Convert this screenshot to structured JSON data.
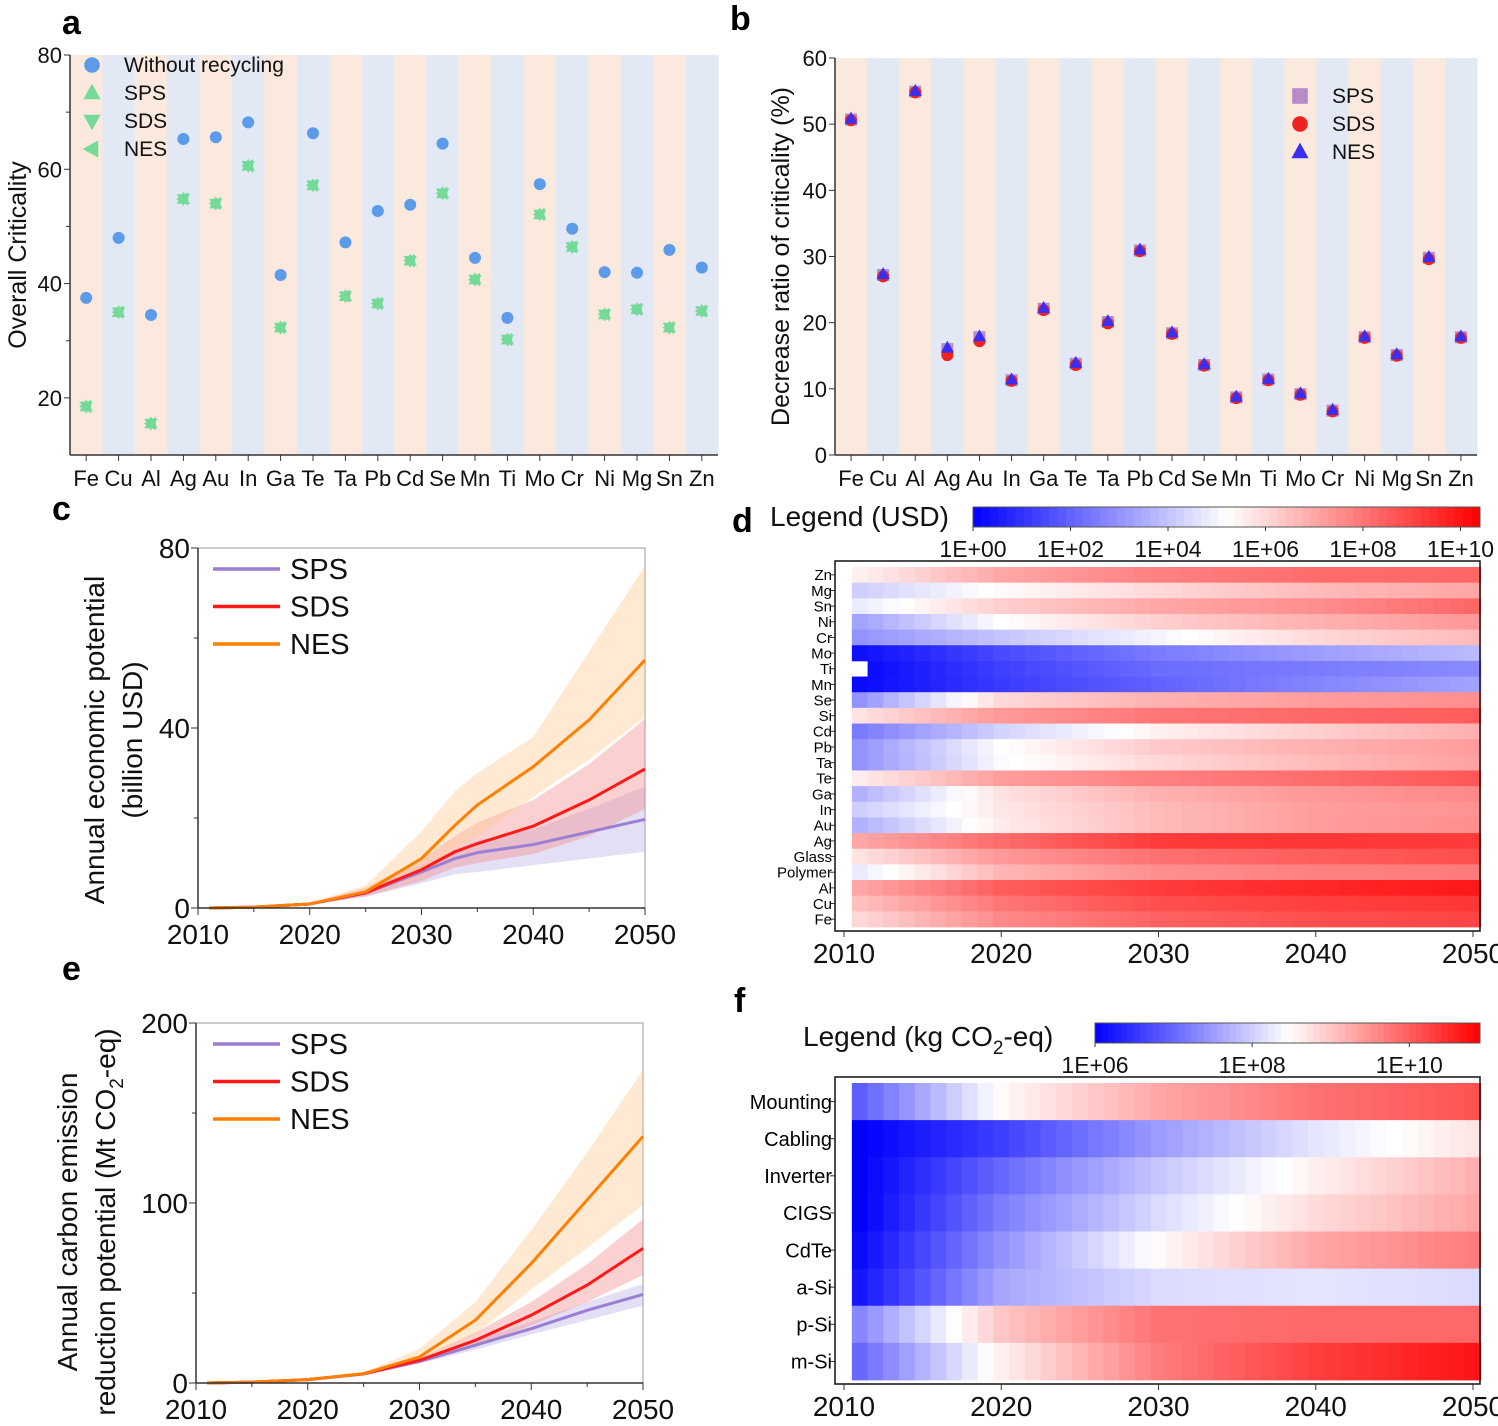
{
  "chart_data": [
    {
      "panel": "a",
      "type": "scatter",
      "ylabel": "Overall Criticality",
      "ylim": [
        10,
        80
      ],
      "yticks": [
        20,
        40,
        60,
        80
      ],
      "categories": [
        "Fe",
        "Cu",
        "Al",
        "Ag",
        "Au",
        "In",
        "Ga",
        "Te",
        "Ta",
        "Pb",
        "Cd",
        "Se",
        "Mn",
        "Ti",
        "Mo",
        "Cr",
        "Ni",
        "Mg",
        "Sn",
        "Zn"
      ],
      "background_colors": [
        "#fce9dd",
        "#e3e8f5"
      ],
      "series": [
        {
          "name": "Without recycling",
          "marker": "circle",
          "color": "#5b9bea",
          "values": [
            37.5,
            48.0,
            34.5,
            65.3,
            65.6,
            68.2,
            41.5,
            66.3,
            47.2,
            52.7,
            53.8,
            64.5,
            44.5,
            34.0,
            57.4,
            49.6,
            42.0,
            41.9,
            45.9,
            42.8
          ]
        },
        {
          "name": "SPS",
          "marker": "triangle-up",
          "color": "#74da98",
          "values": [
            18.5,
            35.0,
            15.5,
            54.8,
            54.0,
            60.6,
            32.3,
            57.2,
            37.8,
            36.5,
            44.0,
            55.8,
            40.7,
            30.2,
            52.1,
            46.4,
            34.6,
            35.5,
            32.3,
            35.2
          ]
        },
        {
          "name": "SDS",
          "marker": "triangle-down",
          "color": "#74da98",
          "values": [
            18.5,
            35.0,
            15.5,
            54.8,
            54.0,
            60.6,
            32.3,
            57.2,
            37.8,
            36.5,
            44.0,
            55.8,
            40.7,
            30.2,
            52.1,
            46.4,
            34.6,
            35.5,
            32.3,
            35.2
          ]
        },
        {
          "name": "NES",
          "marker": "triangle-left",
          "color": "#74da98",
          "values": [
            18.5,
            35.0,
            15.5,
            54.8,
            54.0,
            60.6,
            32.3,
            57.2,
            37.8,
            36.5,
            44.0,
            55.8,
            40.7,
            30.2,
            52.1,
            46.4,
            34.6,
            35.5,
            32.3,
            35.2
          ]
        }
      ],
      "legend_position": "top-left"
    },
    {
      "panel": "b",
      "type": "scatter",
      "ylabel": "Decrease ratio of criticality (%)",
      "ylim": [
        0,
        60
      ],
      "yticks": [
        0,
        10,
        20,
        30,
        40,
        50,
        60
      ],
      "categories": [
        "Fe",
        "Cu",
        "Al",
        "Ag",
        "Au",
        "In",
        "Ga",
        "Te",
        "Ta",
        "Pb",
        "Cd",
        "Se",
        "Mn",
        "Ti",
        "Mo",
        "Cr",
        "Ni",
        "Mg",
        "Sn",
        "Zn"
      ],
      "background_colors": [
        "#fce9dd",
        "#e3e8f5"
      ],
      "series": [
        {
          "name": "SPS",
          "marker": "square",
          "color": "#b58cc6",
          "values": [
            50.7,
            27.2,
            54.9,
            16.0,
            17.8,
            11.3,
            22.1,
            13.8,
            20.1,
            30.9,
            18.4,
            13.6,
            8.7,
            11.4,
            9.2,
            6.7,
            17.8,
            15.1,
            29.8,
            17.8
          ]
        },
        {
          "name": "SDS",
          "marker": "circle",
          "color": "#ee2222",
          "values": [
            50.6,
            27.0,
            54.8,
            15.1,
            17.2,
            11.2,
            21.9,
            13.6,
            19.9,
            30.8,
            18.3,
            13.5,
            8.6,
            11.3,
            9.1,
            6.6,
            17.7,
            15.0,
            29.6,
            17.7
          ]
        },
        {
          "name": "NES",
          "marker": "triangle-up",
          "color": "#3a2ff0",
          "values": [
            50.8,
            27.3,
            55.0,
            16.2,
            17.9,
            11.4,
            22.2,
            13.9,
            20.2,
            31.0,
            18.5,
            13.7,
            8.8,
            11.5,
            9.3,
            6.8,
            17.9,
            15.2,
            29.9,
            17.9
          ]
        }
      ],
      "legend_position": "top-right"
    },
    {
      "panel": "c",
      "type": "line",
      "ylabel_lines": [
        "Annual economic potential",
        "(billion USD)"
      ],
      "xlim": [
        2010,
        2050
      ],
      "ylim": [
        0,
        80
      ],
      "xticks": [
        2010,
        2020,
        2030,
        2040,
        2050
      ],
      "yticks": [
        0,
        40,
        80
      ],
      "x": [
        2011,
        2015,
        2020,
        2025,
        2030,
        2033,
        2035,
        2040,
        2045,
        2050
      ],
      "series": [
        {
          "name": "SPS",
          "color": "#9b7fd4",
          "band_color": "#b9aee6",
          "values": [
            0,
            0.2,
            0.9,
            3.3,
            8.0,
            11.0,
            12.3,
            14.1,
            16.9,
            19.7
          ],
          "lower": [
            0,
            0.1,
            0.7,
            2.5,
            5.5,
            7.5,
            8.0,
            9.5,
            11.0,
            12.5
          ],
          "upper": [
            0,
            0.3,
            1.1,
            4.0,
            9.5,
            13.0,
            15.0,
            17.5,
            22.0,
            27.0
          ]
        },
        {
          "name": "SDS",
          "color": "#ff1a1a",
          "band_color": "#f28a8a",
          "values": [
            0,
            0.2,
            0.9,
            3.4,
            8.5,
            12.5,
            14.3,
            18.2,
            24.0,
            30.9
          ],
          "lower": [
            0,
            0.1,
            0.7,
            2.6,
            6.0,
            9.0,
            10.0,
            12.0,
            16.0,
            22.0
          ],
          "upper": [
            0,
            0.3,
            1.1,
            4.5,
            11.0,
            16.0,
            19.0,
            24.0,
            32.0,
            42.0
          ]
        },
        {
          "name": "NES",
          "color": "#ff8000",
          "band_color": "#ffc990",
          "values": [
            0,
            0.2,
            0.9,
            3.6,
            11.0,
            18.4,
            22.9,
            31.4,
            41.8,
            55.1
          ],
          "lower": [
            0,
            0.1,
            0.7,
            2.8,
            7.0,
            13.0,
            16.0,
            24.7,
            33.0,
            42.5
          ],
          "upper": [
            0,
            0.3,
            1.2,
            5.0,
            17.0,
            26.0,
            30.0,
            38.0,
            57.0,
            76.0
          ]
        }
      ],
      "legend_position": "top-left"
    },
    {
      "panel": "d",
      "type": "heatmap",
      "legend_title": "Legend (USD)",
      "legend_ticks": [
        "1E+00",
        "1E+02",
        "1E+04",
        "1E+06",
        "1E+08",
        "1E+10"
      ],
      "legend_tick_values": [
        0,
        2,
        4,
        6,
        8,
        10
      ],
      "color_range_log10": [
        0,
        10.4
      ],
      "colors": [
        "#0000ff",
        "#ffffff",
        "#ff0000"
      ],
      "xlim": [
        2010,
        2050
      ],
      "xticks": [
        2010,
        2020,
        2030,
        2040,
        2050
      ],
      "anchor_years": [
        2011,
        2020,
        2030,
        2040,
        2050
      ],
      "rows": [
        {
          "label": "Zn",
          "log10_values": [
            5.5,
            7.0,
            7.8,
            8.2,
            8.3
          ]
        },
        {
          "label": "Mg",
          "log10_values": [
            4.2,
            5.3,
            6.0,
            6.6,
            7.0
          ]
        },
        {
          "label": "Sn",
          "log10_values": [
            4.8,
            6.2,
            7.0,
            7.5,
            8.3
          ]
        },
        {
          "label": "Ni",
          "log10_values": [
            3.3,
            5.2,
            6.2,
            6.8,
            7.3
          ]
        },
        {
          "label": "Cr",
          "log10_values": [
            3.0,
            4.0,
            5.0,
            6.0,
            6.6
          ]
        },
        {
          "label": "Mo",
          "log10_values": [
            0.3,
            1.5,
            2.5,
            3.2,
            3.8
          ]
        },
        {
          "label": "Ti",
          "log10_values": [
            null,
            1.3,
            2.2,
            2.5,
            2.8
          ]
        },
        {
          "label": "Mn",
          "log10_values": [
            0.2,
            1.2,
            2.0,
            2.7,
            3.3
          ]
        },
        {
          "label": "Se",
          "log10_values": [
            3.0,
            6.0,
            6.8,
            7.2,
            7.5
          ]
        },
        {
          "label": "Si",
          "log10_values": [
            5.8,
            7.3,
            8.0,
            8.3,
            8.5
          ]
        },
        {
          "label": "Cd",
          "log10_values": [
            2.5,
            4.3,
            5.5,
            6.2,
            6.8
          ]
        },
        {
          "label": "Pb",
          "log10_values": [
            3.0,
            5.2,
            6.3,
            6.8,
            7.2
          ]
        },
        {
          "label": "Ta",
          "log10_values": [
            3.0,
            5.1,
            6.0,
            6.6,
            7.1
          ]
        },
        {
          "label": "Te",
          "log10_values": [
            5.6,
            7.2,
            7.8,
            8.2,
            8.6
          ]
        },
        {
          "label": "Ga",
          "log10_values": [
            3.6,
            5.8,
            6.8,
            7.3,
            7.6
          ]
        },
        {
          "label": "In",
          "log10_values": [
            4.2,
            5.7,
            6.6,
            7.2,
            7.4
          ]
        },
        {
          "label": "Au",
          "log10_values": [
            3.6,
            5.6,
            6.6,
            7.2,
            7.5
          ]
        },
        {
          "label": "Ag",
          "log10_values": [
            7.0,
            8.2,
            9.2,
            9.3,
            9.2
          ]
        },
        {
          "label": "Glass",
          "log10_values": [
            5.8,
            7.3,
            8.1,
            8.5,
            8.8
          ]
        },
        {
          "label": "Polymer",
          "log10_values": [
            4.8,
            6.7,
            7.5,
            7.8,
            7.9
          ]
        },
        {
          "label": "Al",
          "log10_values": [
            7.0,
            8.5,
            9.2,
            9.6,
            9.9
          ]
        },
        {
          "label": "Cu",
          "log10_values": [
            6.5,
            8.0,
            8.8,
            9.1,
            9.3
          ]
        },
        {
          "label": "Fe",
          "log10_values": [
            6.0,
            7.6,
            8.4,
            8.8,
            9.0
          ]
        }
      ]
    },
    {
      "panel": "e",
      "type": "line",
      "ylabel_line1": "Annual carbon emission",
      "ylabel_line2": {
        "pre": "reduction potential (Mt CO",
        "sub": "2",
        "post": "-eq)"
      },
      "xlim": [
        2010,
        2050
      ],
      "ylim": [
        0,
        200
      ],
      "xticks": [
        2010,
        2020,
        2030,
        2040,
        2050
      ],
      "yticks": [
        0,
        100,
        200
      ],
      "x": [
        2011,
        2015,
        2020,
        2025,
        2030,
        2035,
        2040,
        2045,
        2050
      ],
      "series": [
        {
          "name": "SPS",
          "color": "#9b7fd4",
          "band_color": "#b9aee6",
          "values": [
            0,
            0.5,
            1.9,
            5.0,
            12.0,
            21.0,
            30.2,
            40.4,
            49.2
          ],
          "lower": [
            0,
            0.4,
            1.6,
            4.4,
            11.0,
            18.5,
            27.0,
            35.0,
            43.0
          ],
          "upper": [
            0,
            0.6,
            2.1,
            5.5,
            13.0,
            23.5,
            34.0,
            45.0,
            55.0
          ]
        },
        {
          "name": "SDS",
          "color": "#ff1a1a",
          "band_color": "#f28a8a",
          "values": [
            0,
            0.5,
            1.9,
            5.1,
            12.6,
            23.7,
            37.7,
            54.4,
            74.8
          ],
          "lower": [
            0,
            0.4,
            1.6,
            4.5,
            11.0,
            20.0,
            32.0,
            45.0,
            60.0
          ],
          "upper": [
            0,
            0.6,
            2.2,
            5.7,
            14.0,
            28.0,
            45.0,
            66.0,
            91.0
          ]
        },
        {
          "name": "NES",
          "color": "#ff8000",
          "band_color": "#ffc990",
          "values": [
            0,
            0.5,
            1.9,
            5.2,
            14.5,
            34.9,
            66.4,
            101.7,
            137.0
          ],
          "lower": [
            0,
            0.4,
            1.6,
            4.6,
            11.0,
            27.0,
            52.0,
            75.0,
            99.0
          ],
          "upper": [
            0,
            0.6,
            2.3,
            6.0,
            19.0,
            45.0,
            85.0,
            128.0,
            174.0
          ]
        }
      ],
      "legend_position": "top-left"
    },
    {
      "panel": "f",
      "type": "heatmap",
      "legend_title": {
        "pre": "Legend (kg CO",
        "sub": "2",
        "post": "-eq)"
      },
      "legend_ticks": [
        "1E+06",
        "1E+08",
        "1E+10"
      ],
      "legend_tick_values": [
        6,
        8,
        10
      ],
      "color_range_log10": [
        6,
        10.9
      ],
      "colors": [
        "#0000ff",
        "#ffffff",
        "#ff0000"
      ],
      "xlim": [
        2010,
        2050
      ],
      "xticks": [
        2010,
        2020,
        2030,
        2040,
        2050
      ],
      "anchor_years": [
        2011,
        2020,
        2030,
        2040,
        2050
      ],
      "rows": [
        {
          "label": "Mounting",
          "log10_values": [
            6.9,
            8.5,
            9.3,
            9.8,
            10.1
          ]
        },
        {
          "label": "Cabling",
          "log10_values": [
            6.0,
            6.6,
            7.5,
            8.2,
            8.7
          ]
        },
        {
          "label": "Inverter",
          "log10_values": [
            6.0,
            7.0,
            7.9,
            8.6,
            9.2
          ]
        },
        {
          "label": "CIGS",
          "log10_values": [
            6.0,
            7.2,
            8.1,
            8.8,
            9.3
          ]
        },
        {
          "label": "CdTe",
          "log10_values": [
            6.1,
            7.4,
            8.5,
            9.3,
            9.7
          ]
        },
        {
          "label": "a-Si",
          "log10_values": [
            6.2,
            7.6,
            8.1,
            8.2,
            8.1
          ]
        },
        {
          "label": "p-Si",
          "log10_values": [
            7.3,
            9.0,
            9.8,
            9.9,
            9.9
          ]
        },
        {
          "label": "m-Si",
          "log10_values": [
            7.0,
            8.6,
            9.7,
            10.3,
            10.7
          ]
        }
      ]
    }
  ]
}
